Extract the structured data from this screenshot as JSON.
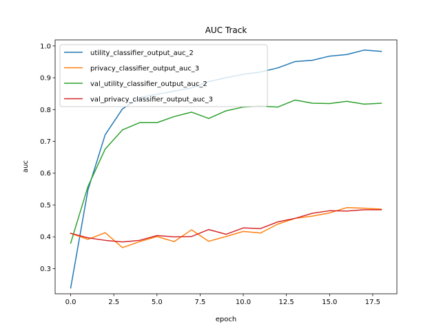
{
  "chart_data": {
    "type": "line",
    "title": "AUC Track",
    "xlabel": "epoch",
    "ylabel": "auc",
    "xlim": [
      -0.9,
      18.9
    ],
    "ylim": [
      0.221,
      1.019
    ],
    "xticks": [
      0.0,
      2.5,
      5.0,
      7.5,
      10.0,
      12.5,
      15.0,
      17.5
    ],
    "xtick_labels": [
      "0.0",
      "2.5",
      "5.0",
      "7.5",
      "10.0",
      "12.5",
      "15.0",
      "17.5"
    ],
    "yticks": [
      0.3,
      0.4,
      0.5,
      0.6,
      0.7,
      0.8,
      0.9,
      1.0
    ],
    "ytick_labels": [
      "0.3",
      "0.4",
      "0.5",
      "0.6",
      "0.7",
      "0.8",
      "0.9",
      "1.0"
    ],
    "grid": false,
    "legend": "upper left",
    "x": [
      0,
      1,
      2,
      3,
      4,
      5,
      6,
      7,
      8,
      9,
      10,
      11,
      12,
      13,
      14,
      15,
      16,
      17,
      18
    ],
    "series": [
      {
        "name": "utility_classifier_output_auc_2",
        "color": "#1f77b4",
        "values": [
          0.239,
          0.547,
          0.721,
          0.802,
          0.838,
          0.848,
          0.858,
          0.868,
          0.888,
          0.9,
          0.911,
          0.918,
          0.931,
          0.951,
          0.955,
          0.968,
          0.973,
          0.987,
          0.983
        ]
      },
      {
        "name": "privacy_classifier_output_auc_3",
        "color": "#ff7f0e",
        "values": [
          0.411,
          0.392,
          0.413,
          0.366,
          0.385,
          0.401,
          0.385,
          0.422,
          0.386,
          0.401,
          0.417,
          0.412,
          0.44,
          0.458,
          0.465,
          0.475,
          0.492,
          0.49,
          0.487
        ]
      },
      {
        "name": "val_utility_classifier_output_auc_2",
        "color": "#2ca02c",
        "values": [
          0.38,
          0.558,
          0.676,
          0.736,
          0.759,
          0.759,
          0.778,
          0.792,
          0.772,
          0.796,
          0.808,
          0.811,
          0.808,
          0.83,
          0.82,
          0.819,
          0.826,
          0.817,
          0.82
        ]
      },
      {
        "name": "val_privacy_classifier_output_auc_3",
        "color": "#d62728",
        "values": [
          0.411,
          0.397,
          0.389,
          0.384,
          0.389,
          0.404,
          0.4,
          0.401,
          0.423,
          0.408,
          0.428,
          0.426,
          0.447,
          0.458,
          0.474,
          0.482,
          0.481,
          0.485,
          0.485
        ]
      }
    ]
  }
}
